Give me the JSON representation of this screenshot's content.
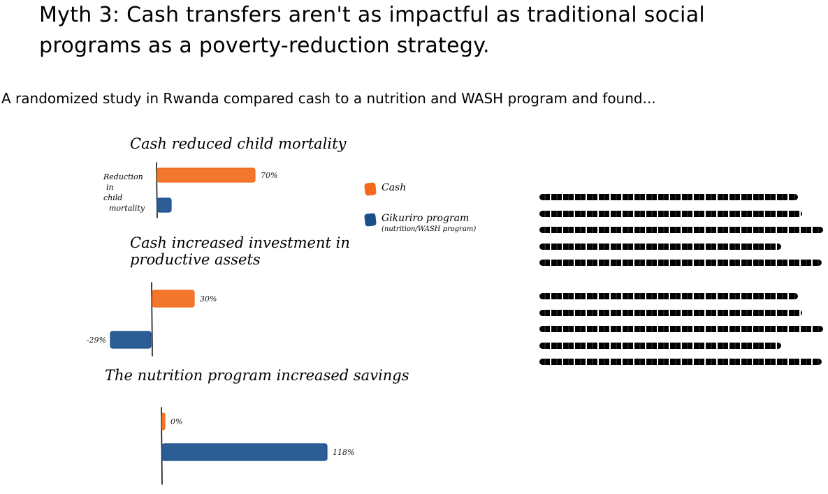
{
  "title": "Myth 3: Cash transfers aren't as impactful as traditional social programs as a poverty-reduction strategy.",
  "subtitle": "A randomized study in Rwanda compared cash to a nutrition and WASH program and found...",
  "colors": {
    "cash": "#f26a1b",
    "gikuriro": "#1a4f8c"
  },
  "legend": {
    "cash_label": "Cash",
    "gikuriro_label": "Gikuriro program",
    "gikuriro_sub": "(nutrition/WASH program)"
  },
  "chart1_ylabel": [
    "Reduction",
    "in",
    "child",
    "mortality"
  ],
  "chart_data": [
    {
      "type": "bar",
      "title": "Cash reduced child mortality",
      "ylabel": "Reduction in child mortality",
      "series": [
        {
          "name": "Cash",
          "values": [
            70
          ],
          "labels": [
            "70%"
          ]
        },
        {
          "name": "Gikuriro program",
          "values": [
            10
          ],
          "labels": [
            ""
          ]
        }
      ]
    },
    {
      "type": "bar",
      "title": "Cash increased investment in productive assets",
      "series": [
        {
          "name": "Cash",
          "values": [
            30
          ],
          "labels": [
            "30%"
          ]
        },
        {
          "name": "Gikuriro program",
          "values": [
            -29
          ],
          "labels": [
            "-29%"
          ]
        }
      ]
    },
    {
      "type": "bar",
      "title": "The nutrition program increased savings",
      "series": [
        {
          "name": "Cash",
          "values": [
            0
          ],
          "labels": [
            "0%"
          ]
        },
        {
          "name": "Gikuriro program",
          "values": [
            118
          ],
          "labels": [
            "118%"
          ]
        }
      ]
    }
  ]
}
